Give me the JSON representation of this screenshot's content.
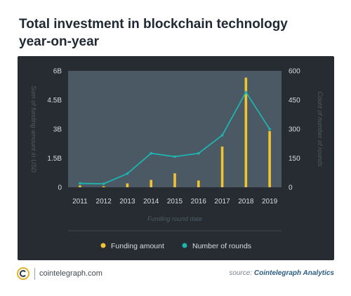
{
  "title_line1": "Total investment in blockchain technology",
  "title_line2": "year-on-year",
  "footer": {
    "site": "cointelegraph.com",
    "source_label": "source:",
    "source_name": "Cointelegraph Analytics"
  },
  "colors": {
    "funding": "#f1c232",
    "rounds": "#1fb3b0",
    "panel": "#262c31",
    "plot": "#4a5963"
  },
  "chart_data": {
    "type": "bar",
    "title": "Total investment in blockchain technology year-on-year",
    "xlabel": "Funding round date",
    "ylabel": "Sum of funding amount in USD",
    "y2label": "Count of number of rounds",
    "categories": [
      "2011",
      "2012",
      "2013",
      "2014",
      "2015",
      "2016",
      "2017",
      "2018",
      "2019"
    ],
    "ylim": [
      0,
      6000000000
    ],
    "y2lim": [
      0,
      600
    ],
    "yticks": [
      "0",
      "1.5B",
      "3B",
      "4.5B",
      "6B"
    ],
    "y2ticks": [
      "0",
      "150",
      "300",
      "450",
      "600"
    ],
    "legend_position": "bottom",
    "series": [
      {
        "name": "Funding amount",
        "type": "bar",
        "axis": "left",
        "values": [
          90000000,
          50000000,
          200000000,
          380000000,
          720000000,
          350000000,
          2100000000,
          5650000000,
          2900000000
        ]
      },
      {
        "name": "Number of rounds",
        "type": "line",
        "axis": "right",
        "values": [
          20,
          18,
          70,
          175,
          158,
          175,
          268,
          490,
          300
        ]
      }
    ]
  }
}
